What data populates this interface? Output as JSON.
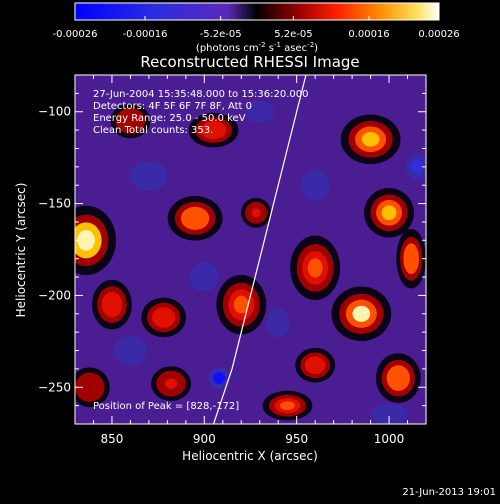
{
  "chart_data": {
    "type": "heatmap",
    "title": "Reconstructed RHESSI Image",
    "xlabel": "Heliocentric X (arcsec)",
    "ylabel": "Heliocentric Y (arcsec)",
    "xlim": [
      830,
      1020
    ],
    "ylim": [
      -270,
      -80
    ],
    "xticks": [
      850,
      900,
      950,
      1000
    ],
    "yticks": [
      -250,
      -200,
      -150,
      -100
    ],
    "colorbar": {
      "ticks": [
        "-0.00026",
        "-0.00016",
        "-5.2e-05",
        "5.2e-05",
        "0.00016",
        "0.00026"
      ],
      "range": [
        -0.00026,
        0.00026
      ],
      "units_prefix": "(photons cm",
      "units_exp1": "-2",
      "units_mid": " s",
      "units_exp2": "-1",
      "units_mid2": " asec",
      "units_exp3": "-2",
      "units_suffix": ")"
    },
    "annotations": {
      "time": "27-Jun-2004 15:35:48.000 to 15:36:20.000",
      "detectors": "Detectors: 4F 5F 6F 7F 8F, Att 0",
      "energy": "Energy Range: 25.0 - 50.0 keV",
      "clean": "Clean    Total counts: 353.",
      "peak": "Position of Peak = [828,-172]"
    },
    "limb_curve": [
      [
        905,
        -270
      ],
      [
        915,
        -240
      ],
      [
        925,
        -200
      ],
      [
        935,
        -160
      ],
      [
        945,
        -120
      ],
      [
        955,
        -80
      ]
    ],
    "blobs": [
      {
        "x": 836,
        "y": -170,
        "sx": 12,
        "sy": 14,
        "v": 0.00026
      },
      {
        "x": 850,
        "y": -205,
        "sx": 8,
        "sy": 10,
        "v": 0.00012
      },
      {
        "x": 895,
        "y": -158,
        "sx": 11,
        "sy": 9,
        "v": 0.00018
      },
      {
        "x": 905,
        "y": -110,
        "sx": 10,
        "sy": 7,
        "v": 0.00014
      },
      {
        "x": 920,
        "y": -205,
        "sx": 10,
        "sy": 12,
        "v": 0.00015
      },
      {
        "x": 878,
        "y": -212,
        "sx": 9,
        "sy": 8,
        "v": 0.00012
      },
      {
        "x": 882,
        "y": -248,
        "sx": 8,
        "sy": 7,
        "v": 0.0001
      },
      {
        "x": 960,
        "y": -185,
        "sx": 10,
        "sy": 13,
        "v": 0.00016
      },
      {
        "x": 990,
        "y": -115,
        "sx": 12,
        "sy": 10,
        "v": 0.00022
      },
      {
        "x": 1000,
        "y": -155,
        "sx": 10,
        "sy": 10,
        "v": 0.0002
      },
      {
        "x": 985,
        "y": -210,
        "sx": 12,
        "sy": 11,
        "v": 0.00024
      },
      {
        "x": 1005,
        "y": -245,
        "sx": 9,
        "sy": 10,
        "v": 0.00018
      },
      {
        "x": 960,
        "y": -238,
        "sx": 8,
        "sy": 7,
        "v": 0.00012
      },
      {
        "x": 945,
        "y": -260,
        "sx": 10,
        "sy": 6,
        "v": 0.00016
      },
      {
        "x": 860,
        "y": -105,
        "sx": 8,
        "sy": 7,
        "v": 8e-05
      },
      {
        "x": 928,
        "y": -155,
        "sx": 6,
        "sy": 6,
        "v": 0.0001
      },
      {
        "x": 1012,
        "y": -180,
        "sx": 6,
        "sy": 12,
        "v": 0.00018
      },
      {
        "x": 838,
        "y": -250,
        "sx": 8,
        "sy": 8,
        "v": 6e-05
      },
      {
        "x": 930,
        "y": -100,
        "sx": 8,
        "sy": 6,
        "v": -0.0001
      },
      {
        "x": 908,
        "y": -245,
        "sx": 6,
        "sy": 6,
        "v": -0.00022
      },
      {
        "x": 870,
        "y": -135,
        "sx": 10,
        "sy": 8,
        "v": -8e-05
      },
      {
        "x": 960,
        "y": -140,
        "sx": 8,
        "sy": 8,
        "v": -0.0001
      },
      {
        "x": 900,
        "y": -190,
        "sx": 8,
        "sy": 8,
        "v": -0.0001
      },
      {
        "x": 1015,
        "y": -130,
        "sx": 6,
        "sy": 7,
        "v": -0.00016
      },
      {
        "x": 940,
        "y": -215,
        "sx": 6,
        "sy": 8,
        "v": -8e-05
      },
      {
        "x": 860,
        "y": -230,
        "sx": 9,
        "sy": 8,
        "v": -6e-05
      },
      {
        "x": 1000,
        "y": -265,
        "sx": 10,
        "sy": 6,
        "v": -8e-05
      }
    ]
  },
  "footer": {
    "timestamp": "21-Jun-2013 19:01"
  }
}
